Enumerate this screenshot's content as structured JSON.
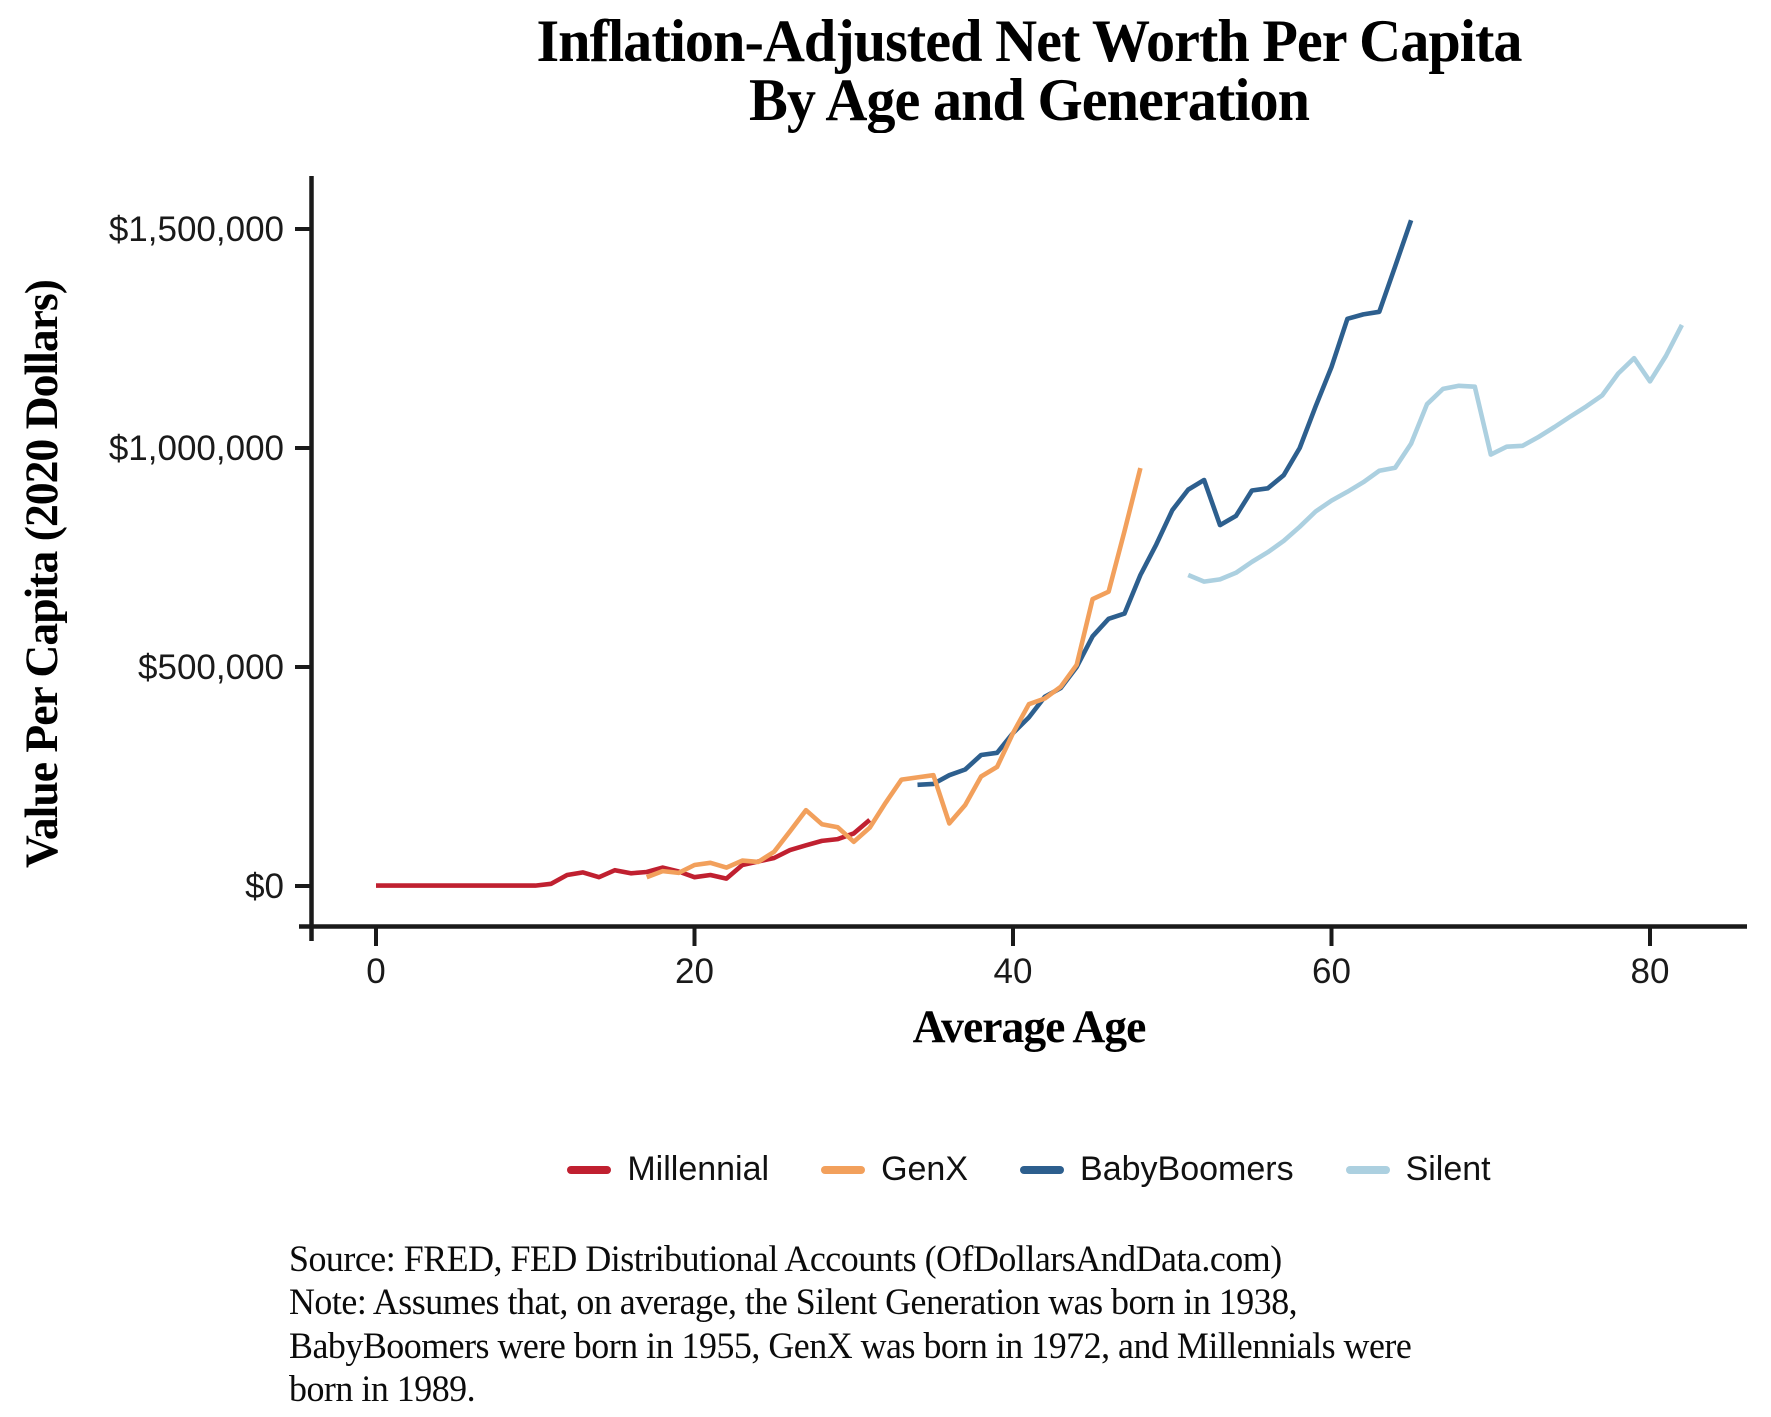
{
  "title": {
    "line1": "Inflation-Adjusted Net Worth Per Capita",
    "line2": "By Age and Generation"
  },
  "source_note": {
    "text": "Source:  FRED, FED Distributional Accounts (OfDollarsAndData.com)\nNote: Assumes that, on average, the Silent Generation was born in 1938,\nBabyBoomers were born in 1955, GenX was born in 1972, and Millennials were\nborn in 1989."
  },
  "colors": {
    "axis": "#1a1a1a",
    "millennial": "#C02030",
    "genx": "#F2A05C",
    "babyboomers": "#2D5F8E",
    "silent": "#ACD0E0"
  },
  "chart_data": {
    "type": "line",
    "title": "Inflation-Adjusted Net Worth Per Capita By Age and Generation",
    "xlabel": "Average Age",
    "ylabel": "Value Per Capita (2020 Dollars)",
    "xlim": [
      -4,
      86
    ],
    "ylim": [
      -90000,
      1620000
    ],
    "grid": false,
    "legend_position": "bottom",
    "x_ticks": [
      {
        "value": 0,
        "label": "0"
      },
      {
        "value": 20,
        "label": "20"
      },
      {
        "value": 40,
        "label": "40"
      },
      {
        "value": 60,
        "label": "60"
      },
      {
        "value": 80,
        "label": "80"
      }
    ],
    "y_ticks": [
      {
        "value": 0,
        "label": "$0"
      },
      {
        "value": 500000,
        "label": "$500,000"
      },
      {
        "value": 1000000,
        "label": "$1,000,000"
      },
      {
        "value": 1500000,
        "label": "$1,500,000"
      }
    ],
    "series": [
      {
        "name": "Millennial",
        "color": "#C02030",
        "points": [
          [
            0,
            1000
          ],
          [
            1,
            1000
          ],
          [
            2,
            1000
          ],
          [
            3,
            1000
          ],
          [
            4,
            1000
          ],
          [
            5,
            1000
          ],
          [
            6,
            1000
          ],
          [
            7,
            1000
          ],
          [
            8,
            1000
          ],
          [
            9,
            1000
          ],
          [
            10,
            1000
          ],
          [
            11,
            5000
          ],
          [
            12,
            25000
          ],
          [
            13,
            31000
          ],
          [
            14,
            20000
          ],
          [
            15,
            36000
          ],
          [
            16,
            29000
          ],
          [
            17,
            32000
          ],
          [
            18,
            42000
          ],
          [
            19,
            33000
          ],
          [
            20,
            20000
          ],
          [
            21,
            25000
          ],
          [
            22,
            17000
          ],
          [
            23,
            48000
          ],
          [
            24,
            56000
          ],
          [
            25,
            64000
          ],
          [
            26,
            82000
          ],
          [
            27,
            93000
          ],
          [
            28,
            103000
          ],
          [
            29,
            107000
          ],
          [
            30,
            120000
          ],
          [
            31,
            151000
          ]
        ]
      },
      {
        "name": "GenX",
        "color": "#F2A05C",
        "points": [
          [
            17,
            20000
          ],
          [
            18,
            34000
          ],
          [
            19,
            30000
          ],
          [
            20,
            48000
          ],
          [
            21,
            53000
          ],
          [
            22,
            42000
          ],
          [
            23,
            58000
          ],
          [
            24,
            55000
          ],
          [
            25,
            78000
          ],
          [
            26,
            125000
          ],
          [
            27,
            173000
          ],
          [
            28,
            141000
          ],
          [
            29,
            134000
          ],
          [
            30,
            101000
          ],
          [
            31,
            133000
          ],
          [
            32,
            190000
          ],
          [
            33,
            243000
          ],
          [
            34,
            248000
          ],
          [
            35,
            253000
          ],
          [
            36,
            143000
          ],
          [
            37,
            185000
          ],
          [
            38,
            250000
          ],
          [
            39,
            272000
          ],
          [
            40,
            349000
          ],
          [
            41,
            415000
          ],
          [
            42,
            428000
          ],
          [
            43,
            455000
          ],
          [
            44,
            505000
          ],
          [
            45,
            655000
          ],
          [
            46,
            672000
          ],
          [
            47,
            810000
          ],
          [
            48,
            954000
          ]
        ]
      },
      {
        "name": "BabyBoomers",
        "color": "#2D5F8E",
        "points": [
          [
            34,
            231000
          ],
          [
            35,
            233000
          ],
          [
            36,
            253000
          ],
          [
            37,
            266000
          ],
          [
            38,
            299000
          ],
          [
            39,
            304000
          ],
          [
            40,
            349000
          ],
          [
            41,
            385000
          ],
          [
            42,
            432000
          ],
          [
            43,
            452000
          ],
          [
            44,
            500000
          ],
          [
            45,
            570000
          ],
          [
            46,
            610000
          ],
          [
            47,
            622000
          ],
          [
            48,
            710000
          ],
          [
            49,
            780000
          ],
          [
            50,
            858000
          ],
          [
            51,
            905000
          ],
          [
            52,
            927000
          ],
          [
            53,
            824000
          ],
          [
            54,
            845000
          ],
          [
            55,
            903000
          ],
          [
            56,
            908000
          ],
          [
            57,
            938000
          ],
          [
            58,
            1000000
          ],
          [
            59,
            1095000
          ],
          [
            60,
            1185000
          ],
          [
            61,
            1295000
          ],
          [
            62,
            1305000
          ],
          [
            63,
            1311000
          ],
          [
            64,
            1415000
          ],
          [
            65,
            1520000
          ]
        ]
      },
      {
        "name": "Silent",
        "color": "#ACD0E0",
        "points": [
          [
            51,
            710000
          ],
          [
            52,
            695000
          ],
          [
            53,
            700000
          ],
          [
            54,
            715000
          ],
          [
            55,
            740000
          ],
          [
            56,
            762000
          ],
          [
            57,
            788000
          ],
          [
            58,
            820000
          ],
          [
            59,
            855000
          ],
          [
            60,
            880000
          ],
          [
            61,
            900000
          ],
          [
            62,
            922000
          ],
          [
            63,
            948000
          ],
          [
            64,
            955000
          ],
          [
            65,
            1010000
          ],
          [
            66,
            1100000
          ],
          [
            67,
            1135000
          ],
          [
            68,
            1142000
          ],
          [
            69,
            1140000
          ],
          [
            70,
            985000
          ],
          [
            71,
            1003000
          ],
          [
            72,
            1005000
          ],
          [
            73,
            1025000
          ],
          [
            74,
            1048000
          ],
          [
            75,
            1072000
          ],
          [
            76,
            1095000
          ],
          [
            77,
            1120000
          ],
          [
            78,
            1170000
          ],
          [
            79,
            1205000
          ],
          [
            80,
            1152000
          ],
          [
            81,
            1210000
          ],
          [
            82,
            1281000
          ]
        ]
      }
    ]
  }
}
